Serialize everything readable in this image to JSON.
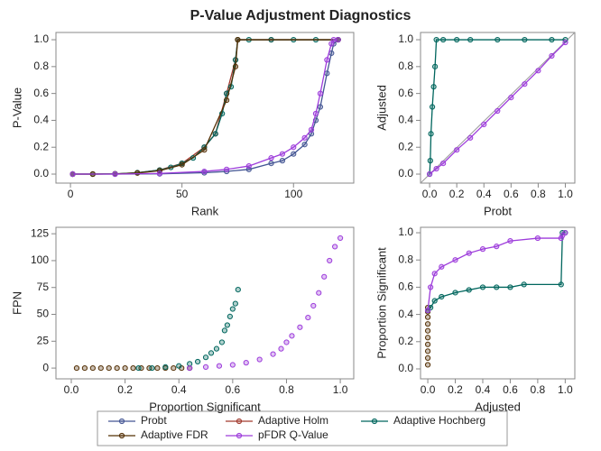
{
  "title": "P-Value Adjustment Diagnostics",
  "chart_data": [
    {
      "type": "line",
      "x_label": "Rank",
      "y_label": "P-Value",
      "xlim": [
        -6.5,
        127
      ],
      "xticks": [
        0,
        50,
        100
      ],
      "ylim": [
        -0.067,
        1.054
      ],
      "yticks": [
        {
          "value": 0,
          "label": "0.0"
        },
        {
          "value": 0.2,
          "label": "0.2"
        },
        {
          "value": 0.4,
          "label": "0.4"
        },
        {
          "value": 0.6,
          "label": "0.6"
        },
        {
          "value": 0.8,
          "label": "0.8"
        },
        {
          "value": 1,
          "label": "1.0"
        }
      ],
      "series": [
        {
          "name": "Probt",
          "color": "#445694",
          "mode": "lines+markers",
          "x": [
            1,
            20,
            40,
            60,
            70,
            80,
            90,
            95,
            100,
            105,
            108,
            110,
            112,
            115,
            117,
            118,
            120
          ],
          "values": [
            0,
            0,
            0.002,
            0.01,
            0.02,
            0.035,
            0.08,
            0.1,
            0.15,
            0.22,
            0.3,
            0.4,
            0.5,
            0.75,
            0.9,
            0.97,
            1
          ]
        },
        {
          "name": "Adaptive Holm",
          "color": "#a23a2e",
          "mode": "lines+markers",
          "x": [
            1,
            10,
            20,
            30,
            40,
            50,
            60,
            65,
            70,
            74,
            75,
            90,
            120
          ],
          "values": [
            0,
            0,
            0.002,
            0.01,
            0.03,
            0.08,
            0.2,
            0.3,
            0.6,
            0.85,
            1,
            1,
            1
          ]
        },
        {
          "name": "Adaptive Hochberg",
          "color": "#01665e",
          "mode": "lines+markers",
          "x": [
            1,
            10,
            20,
            30,
            40,
            45,
            50,
            55,
            60,
            65,
            68,
            70,
            72,
            74,
            75,
            80,
            90,
            100,
            110,
            120
          ],
          "values": [
            0,
            0,
            0.002,
            0.01,
            0.03,
            0.05,
            0.08,
            0.12,
            0.2,
            0.3,
            0.45,
            0.6,
            0.65,
            0.85,
            1,
            1,
            1,
            1,
            1,
            1
          ]
        },
        {
          "name": "Adaptive FDR",
          "color": "#543005",
          "mode": "lines+markers",
          "x": [
            1,
            10,
            20,
            30,
            40,
            50,
            60,
            70,
            74,
            75,
            120
          ],
          "values": [
            0,
            0,
            0.001,
            0.008,
            0.025,
            0.07,
            0.18,
            0.55,
            0.8,
            1,
            1
          ]
        },
        {
          "name": "pFDR Q-Value",
          "color": "#9d3cdb",
          "mode": "lines+markers",
          "x": [
            1,
            20,
            40,
            60,
            70,
            80,
            90,
            95,
            100,
            105,
            108,
            110,
            112,
            115,
            117,
            118,
            120
          ],
          "values": [
            0,
            0,
            0.005,
            0.02,
            0.035,
            0.06,
            0.12,
            0.15,
            0.2,
            0.27,
            0.33,
            0.45,
            0.6,
            0.85,
            0.97,
            1,
            1
          ]
        }
      ]
    },
    {
      "type": "line",
      "x_label": "Probt",
      "y_label": "Adjusted",
      "reference_diagonal": true,
      "xlim": [
        -0.067,
        1.07
      ],
      "xticks": [
        {
          "value": 0,
          "label": "0.0"
        },
        {
          "value": 0.2,
          "label": "0.2"
        },
        {
          "value": 0.4,
          "label": "0.4"
        },
        {
          "value": 0.6,
          "label": "0.6"
        },
        {
          "value": 0.8,
          "label": "0.8"
        },
        {
          "value": 1,
          "label": "1.0"
        }
      ],
      "ylim": [
        -0.067,
        1.054
      ],
      "yticks": [
        {
          "value": 0,
          "label": "0.0"
        },
        {
          "value": 0.2,
          "label": "0.2"
        },
        {
          "value": 0.4,
          "label": "0.4"
        },
        {
          "value": 0.6,
          "label": "0.6"
        },
        {
          "value": 0.8,
          "label": "0.8"
        },
        {
          "value": 1,
          "label": "1.0"
        }
      ],
      "series": [
        {
          "color": "#01665e",
          "mode": "lines+markers",
          "x": [
            0,
            0.005,
            0.01,
            0.02,
            0.03,
            0.04,
            0.05,
            0.1,
            0.2,
            0.3,
            0.5,
            0.7,
            0.9,
            1
          ],
          "values": [
            0,
            0.1,
            0.3,
            0.5,
            0.65,
            0.8,
            1,
            1,
            1,
            1,
            1,
            1,
            1,
            1
          ]
        },
        {
          "color": "#9d3cdb",
          "mode": "lines+markers",
          "x": [
            0,
            0.05,
            0.1,
            0.2,
            0.3,
            0.4,
            0.5,
            0.6,
            0.7,
            0.8,
            0.9,
            1
          ],
          "values": [
            0,
            0.04,
            0.08,
            0.18,
            0.27,
            0.37,
            0.47,
            0.57,
            0.67,
            0.77,
            0.88,
            0.98
          ]
        }
      ]
    },
    {
      "type": "scatter",
      "x_label": "Proportion Significant",
      "y_label": "FPN",
      "xlim": [
        -0.057,
        1.05
      ],
      "xticks": [
        {
          "value": 0,
          "label": "0.0"
        },
        {
          "value": 0.2,
          "label": "0.2"
        },
        {
          "value": 0.4,
          "label": "0.4"
        },
        {
          "value": 0.6,
          "label": "0.6"
        },
        {
          "value": 0.8,
          "label": "0.8"
        },
        {
          "value": 1,
          "label": "1.0"
        }
      ],
      "ylim": [
        -10,
        131
      ],
      "yticks": [
        0,
        25,
        50,
        75,
        100,
        125
      ],
      "series": [
        {
          "color": "#543005",
          "mode": "markers",
          "x": [
            0.02,
            0.05,
            0.08,
            0.11,
            0.14,
            0.17,
            0.2,
            0.23,
            0.26,
            0.29,
            0.32,
            0.35,
            0.38,
            0.41,
            0.44
          ],
          "values": [
            0,
            0,
            0,
            0,
            0,
            0,
            0,
            0,
            0,
            0,
            0,
            0,
            0,
            0,
            0
          ]
        },
        {
          "color": "#01665e",
          "mode": "markers",
          "x": [
            0.25,
            0.3,
            0.35,
            0.4,
            0.44,
            0.47,
            0.5,
            0.52,
            0.54,
            0.56,
            0.57,
            0.58,
            0.59,
            0.6,
            0.61,
            0.62
          ],
          "values": [
            0,
            0,
            1,
            2,
            4,
            6,
            10,
            14,
            18,
            24,
            35,
            40,
            48,
            55,
            60,
            73
          ]
        },
        {
          "color": "#9d3cdb",
          "mode": "markers",
          "x": [
            0.44,
            0.5,
            0.55,
            0.6,
            0.65,
            0.7,
            0.75,
            0.78,
            0.8,
            0.82,
            0.85,
            0.88,
            0.9,
            0.92,
            0.94,
            0.96,
            0.98,
            1
          ],
          "values": [
            0,
            1,
            2,
            3,
            5,
            8,
            13,
            18,
            24,
            30,
            38,
            47,
            58,
            70,
            85,
            100,
            113,
            121
          ]
        }
      ]
    },
    {
      "type": "line",
      "x_label": "Adjusted",
      "y_label": "Proportion Significant",
      "xlim": [
        -0.053,
        1.07
      ],
      "xticks": [
        {
          "value": 0,
          "label": "0.0"
        },
        {
          "value": 0.2,
          "label": "0.2"
        },
        {
          "value": 0.4,
          "label": "0.4"
        },
        {
          "value": 0.6,
          "label": "0.6"
        },
        {
          "value": 0.8,
          "label": "0.8"
        },
        {
          "value": 1,
          "label": "1.0"
        }
      ],
      "ylim": [
        -0.073,
        1.04
      ],
      "yticks": [
        {
          "value": 0,
          "label": "0.0"
        },
        {
          "value": 0.2,
          "label": "0.2"
        },
        {
          "value": 0.4,
          "label": "0.4"
        },
        {
          "value": 0.6,
          "label": "0.6"
        },
        {
          "value": 0.8,
          "label": "0.8"
        },
        {
          "value": 1,
          "label": "1.0"
        }
      ],
      "series": [
        {
          "color": "#543005",
          "mode": "markers",
          "x": [
            0,
            0,
            0,
            0,
            0,
            0,
            0,
            0,
            0,
            0
          ],
          "values": [
            0.03,
            0.08,
            0.13,
            0.18,
            0.23,
            0.28,
            0.33,
            0.38,
            0.42,
            0.45
          ]
        },
        {
          "color": "#01665e",
          "mode": "lines+markers",
          "x": [
            0,
            0.02,
            0.05,
            0.1,
            0.2,
            0.3,
            0.4,
            0.5,
            0.6,
            0.7,
            0.97,
            0.98,
            1
          ],
          "values": [
            0.43,
            0.45,
            0.5,
            0.53,
            0.56,
            0.58,
            0.6,
            0.6,
            0.6,
            0.62,
            0.62,
            1,
            1
          ]
        },
        {
          "color": "#9d3cdb",
          "mode": "lines+markers",
          "x": [
            0,
            0.02,
            0.05,
            0.1,
            0.2,
            0.3,
            0.4,
            0.5,
            0.6,
            0.8,
            0.97,
            0.98,
            1
          ],
          "values": [
            0.43,
            0.6,
            0.7,
            0.75,
            0.8,
            0.85,
            0.88,
            0.9,
            0.94,
            0.96,
            0.96,
            0.98,
            1
          ]
        }
      ]
    }
  ]
}
